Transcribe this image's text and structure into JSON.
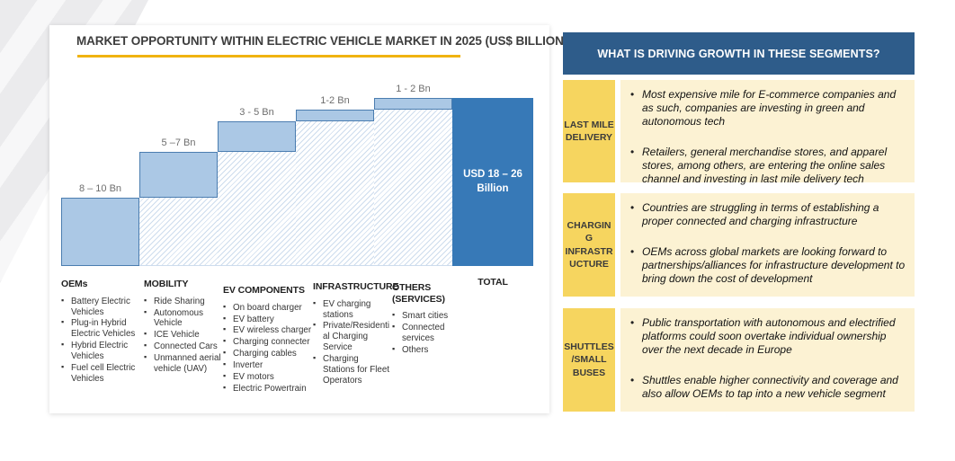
{
  "card": {
    "title": "MARKET OPPORTUNITY WITHIN ELECTRIC VEHICLE MARKET IN 2025 (US$ BILLION)"
  },
  "chart_data": {
    "type": "bar",
    "subtype": "stepped-waterfall",
    "title": "MARKET OPPORTUNITY WITHIN ELECTRIC VEHICLE MARKET IN 2025 (US$ BILLION)",
    "unit": "US$ Billion",
    "categories": [
      "OEMs",
      "MOBILITY",
      "EV COMPONENTS",
      "INFRASTRUCTURE",
      "OTHERS (SERVICES)",
      "TOTAL"
    ],
    "segments": [
      {
        "category": "OEMs",
        "label": "8 – 10 Bn",
        "min": 8,
        "max": 10
      },
      {
        "category": "MOBILITY",
        "label": "5 –7 Bn",
        "min": 5,
        "max": 7
      },
      {
        "category": "EV COMPONENTS",
        "label": "3 - 5 Bn",
        "min": 3,
        "max": 5
      },
      {
        "category": "INFRASTRUCTURE",
        "label": "1-2 Bn",
        "min": 1,
        "max": 2
      },
      {
        "category": "OTHERS (SERVICES)",
        "label": "1 - 2 Bn",
        "min": 1,
        "max": 2
      }
    ],
    "total": {
      "category": "TOTAL",
      "label": "USD 18 – 26 Billion",
      "min": 18,
      "max": 26
    },
    "legend_position": "below",
    "grid": false
  },
  "legend": {
    "columns": [
      {
        "header": "OEMs",
        "items": [
          "Battery Electric Vehicles",
          "Plug-in Hybrid Electric Vehicles",
          "Hybrid Electric Vehicles",
          "Fuel cell Electric Vehicles"
        ]
      },
      {
        "header": "MOBILITY",
        "items": [
          "Ride Sharing",
          "Autonomous Vehicle",
          "ICE Vehicle",
          "Connected Cars",
          "Unmanned aerial vehicle (UAV)"
        ]
      },
      {
        "header": "EV COMPONENTS",
        "items": [
          "On board charger",
          "EV battery",
          "EV wireless charger",
          "Charging connecter",
          "Charging cables",
          "Inverter",
          "EV motors",
          "Electric Powertrain"
        ]
      },
      {
        "header": "INFRASTRUCTURE",
        "items": [
          "EV charging stations",
          "Private/Residential Charging Service",
          "Charging Stations for Fleet Operators"
        ]
      },
      {
        "header": "OTHERS\n(SERVICES)",
        "items": [
          "Smart cities",
          "Connected services",
          "Others"
        ]
      },
      {
        "header": "TOTAL",
        "items": []
      }
    ]
  },
  "panel": {
    "header": "WHAT IS DRIVING GROWTH IN THESE SEGMENTS?",
    "sections": [
      {
        "label": "LAST MILE\nDELIVERY",
        "bullets": [
          "Most expensive mile for E-commerce companies and as such, companies are investing in green and autonomous tech",
          "Retailers, general merchandise stores, and apparel stores, among others, are entering the online sales channel and investing in last mile delivery tech"
        ]
      },
      {
        "label": "CHARGIN\nG\nINFRASTR\nUCTURE",
        "bullets": [
          "Countries are struggling in terms of establishing a proper connected and charging infrastructure",
          "OEMs across global markets are looking forward to partnerships/alliances for infrastructure development to bring down the cost of development"
        ]
      },
      {
        "label": "SHUTTLES\n/SMALL\nBUSES",
        "bullets": [
          "Public transportation with autonomous and electrified platforms could soon overtake individual ownership over the next decade in Europe",
          "Shuttles enable higher connectivity and coverage and also allow OEMs to tap into a new vehicle segment"
        ]
      }
    ]
  },
  "colors": {
    "bar_fill": "#abc8e5",
    "bar_border": "#4b7db0",
    "hatch_line": "#cddced",
    "total_bar": "#3779b7",
    "panel_header_bg": "#2e5c8a",
    "section_label_bg": "#f6d55f",
    "section_content_bg": "#fcf2d3",
    "title_underline": "#f0b310",
    "title_text": "#3d3d3d"
  }
}
